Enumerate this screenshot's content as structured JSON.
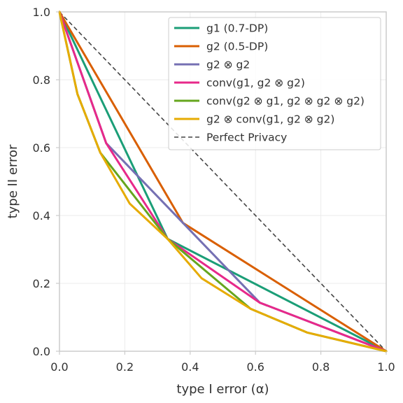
{
  "chart_data": {
    "type": "line",
    "title": "",
    "xlabel": "type I error (α)",
    "ylabel": "type II error",
    "xlim": [
      0,
      1
    ],
    "ylim": [
      0,
      1
    ],
    "xticks": [
      "0.0",
      "0.2",
      "0.4",
      "0.6",
      "0.8",
      "1.0"
    ],
    "yticks": [
      "0.0",
      "0.2",
      "0.4",
      "0.6",
      "0.8",
      "1.0"
    ],
    "grid": true,
    "legend_position": "top-right",
    "series": [
      {
        "name": "g1 (0.7-DP)",
        "color": "#1b9e77",
        "dash": "solid",
        "points": [
          [
            0,
            1
          ],
          [
            0.331,
            0.331
          ],
          [
            1,
            0
          ]
        ]
      },
      {
        "name": "g2 (0.5-DP)",
        "color": "#d95f02",
        "dash": "solid",
        "points": [
          [
            0,
            1
          ],
          [
            0.378,
            0.378
          ],
          [
            1,
            0
          ]
        ]
      },
      {
        "name": "g2 ⊗ g2",
        "color": "#7570b3",
        "dash": "solid",
        "points": [
          [
            0,
            1
          ],
          [
            0.143,
            0.613
          ],
          [
            0.613,
            0.143
          ],
          [
            1,
            0
          ]
        ]
      },
      {
        "name": "conv(g1, g2 ⊗ g2)",
        "color": "#e7298a",
        "dash": "solid",
        "points": [
          [
            0,
            1
          ],
          [
            0.143,
            0.613
          ],
          [
            0.331,
            0.331
          ],
          [
            0.613,
            0.143
          ],
          [
            1,
            0
          ]
        ]
      },
      {
        "name": "conv(g2 ⊗ g1, g2 ⊗ g2 ⊗ g2)",
        "color": "#66a61e",
        "dash": "solid",
        "points": [
          [
            0,
            1
          ],
          [
            0.055,
            0.758
          ],
          [
            0.125,
            0.585
          ],
          [
            0.331,
            0.331
          ],
          [
            0.585,
            0.125
          ],
          [
            0.758,
            0.055
          ],
          [
            1,
            0
          ]
        ]
      },
      {
        "name": "g2 ⊗ conv(g1, g2 ⊗ g2)",
        "color": "#e6ab02",
        "dash": "solid",
        "points": [
          [
            0,
            1
          ],
          [
            0.055,
            0.758
          ],
          [
            0.125,
            0.585
          ],
          [
            0.215,
            0.435
          ],
          [
            0.331,
            0.331
          ],
          [
            0.435,
            0.215
          ],
          [
            0.585,
            0.125
          ],
          [
            0.758,
            0.055
          ],
          [
            1,
            0
          ]
        ]
      },
      {
        "name": "Perfect Privacy",
        "color": "#444444",
        "dash": "dashed",
        "points": [
          [
            0,
            1
          ],
          [
            1,
            0
          ]
        ]
      }
    ]
  }
}
